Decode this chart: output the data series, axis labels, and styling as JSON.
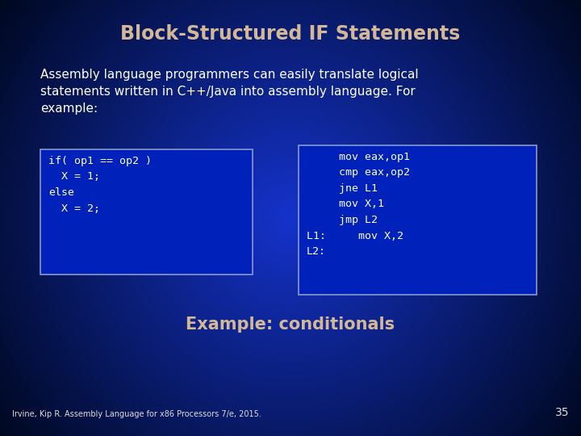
{
  "title": "Block-Structured IF Statements",
  "title_color": "#D4B896",
  "title_fontsize": 17,
  "bg_color_center": "#1533CC",
  "bg_color_edge": "#000820",
  "body_text": "Assembly language programmers can easily translate logical\nstatements written in C++/Java into assembly language. For\nexample:",
  "body_color": "#FFFFFF",
  "body_fontsize": 11,
  "box1_lines": [
    "if( op1 == op2 )",
    "  X = 1;",
    "else",
    "  X = 2;"
  ],
  "box2_lines": [
    "     mov eax,op1",
    "     cmp eax,op2",
    "     jne L1",
    "     mov X,1",
    "     jmp L2",
    "L1:     mov X,2",
    "L2:"
  ],
  "code_color": "#FFFFFF",
  "code_fontsize": 9.5,
  "box_edge_color": "#8899CC",
  "box_bg_color": "#0022BB",
  "subtitle": "Example: conditionals",
  "subtitle_color": "#D4B896",
  "subtitle_fontsize": 15,
  "footer_text": "Irvine, Kip R. Assembly Language for x86 Processors 7/e, 2015.",
  "footer_color": "#DDDDDD",
  "footer_fontsize": 7,
  "page_num": "35",
  "page_num_color": "#DDDDDD",
  "page_num_fontsize": 10
}
